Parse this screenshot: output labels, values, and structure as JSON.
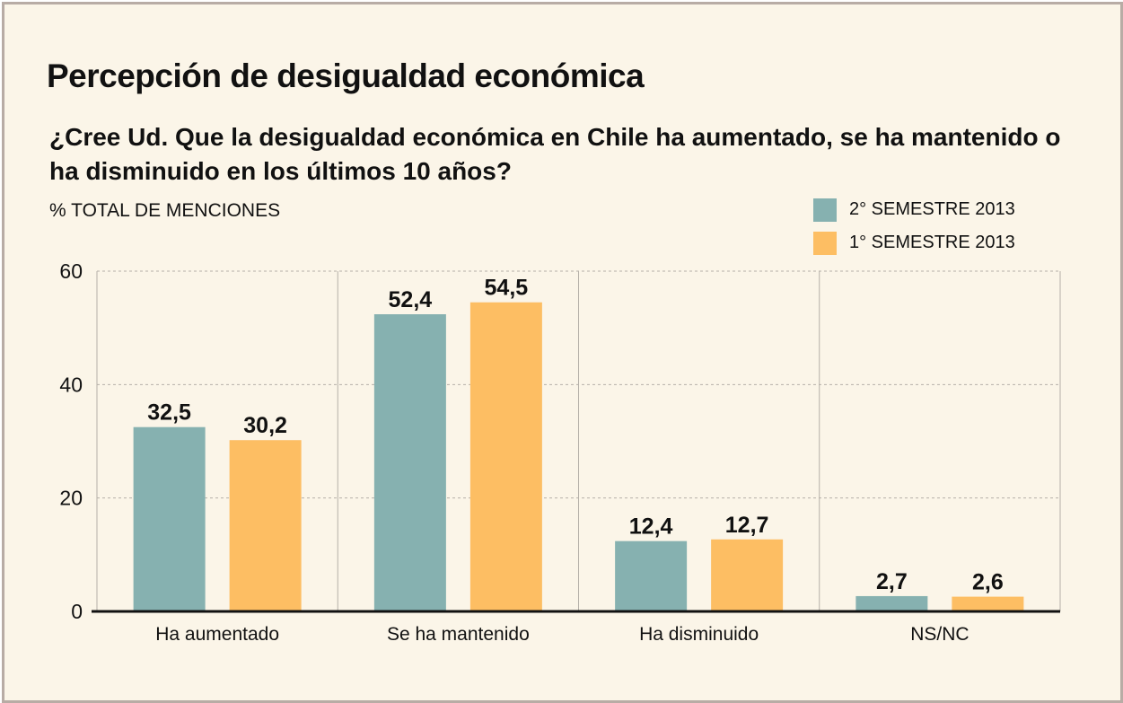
{
  "colors": {
    "series_1": "#86b1b0",
    "series_2": "#fdbe63",
    "background": "#fbf5e8",
    "grid": "#b5b0a8"
  },
  "chart_data": {
    "type": "bar",
    "title": "Percepción de desigualdad económica",
    "subtitle": "¿Cree Ud. Que la desigualdad económica en Chile ha aumentado, se ha mantenido o ha disminuido en los últimos 10 años?",
    "ylabel": "% TOTAL DE MENCIONES",
    "xlabel": "",
    "categories": [
      "Ha aumentado",
      "Se ha mantenido",
      "Ha disminuido",
      "NS/NC"
    ],
    "series": [
      {
        "name": "2° SEMESTRE 2013",
        "values": [
          32.5,
          52.4,
          12.4,
          2.7
        ],
        "labels": [
          "32,5",
          "52,4",
          "12,4",
          "2,7"
        ]
      },
      {
        "name": "1° SEMESTRE 2013",
        "values": [
          30.2,
          54.5,
          12.7,
          2.6
        ],
        "labels": [
          "30,2",
          "54,5",
          "12,7",
          "2,6"
        ]
      }
    ],
    "ylim": [
      0,
      60
    ],
    "yticks": [
      0,
      20,
      40,
      60
    ],
    "grid": true,
    "legend_position": "top-right"
  }
}
